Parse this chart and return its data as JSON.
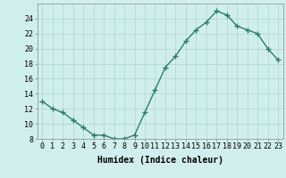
{
  "x": [
    0,
    1,
    2,
    3,
    4,
    5,
    6,
    7,
    8,
    9,
    10,
    11,
    12,
    13,
    14,
    15,
    16,
    17,
    18,
    19,
    20,
    21,
    22,
    23
  ],
  "y": [
    13,
    12,
    11.5,
    10.5,
    9.5,
    8.5,
    8.5,
    8,
    8,
    8.5,
    11.5,
    14.5,
    17.5,
    19,
    21,
    22.5,
    23.5,
    25,
    24.5,
    23,
    22.5,
    22,
    20,
    18.5
  ],
  "line_color": "#2d7d6e",
  "marker": "+",
  "bg_color": "#d0eeee",
  "grid_color": "#b8d8d8",
  "xlabel": "Humidex (Indice chaleur)",
  "ylim": [
    8,
    26
  ],
  "xlim": [
    -0.5,
    23.5
  ],
  "yticks": [
    8,
    10,
    12,
    14,
    16,
    18,
    20,
    22,
    24
  ],
  "xticks": [
    0,
    1,
    2,
    3,
    4,
    5,
    6,
    7,
    8,
    9,
    10,
    11,
    12,
    13,
    14,
    15,
    16,
    17,
    18,
    19,
    20,
    21,
    22,
    23
  ],
  "xlabel_fontsize": 7,
  "tick_fontsize": 6,
  "line_width": 1.0,
  "marker_size": 4
}
